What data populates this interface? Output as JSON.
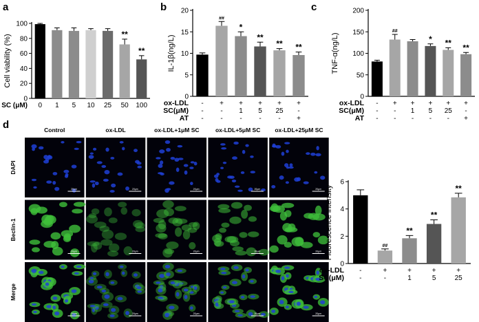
{
  "panel_labels": {
    "a": "a",
    "b": "b",
    "c": "c",
    "d": "d"
  },
  "colors": {
    "black": "#000000",
    "dark_gray": "#555555",
    "mid_gray": "#8c8c8c",
    "light_gray": "#cfcfcf",
    "gray": "#a6a6a6",
    "micro_bg": "#02020a",
    "dapi": "#1f3fd6",
    "beclin": "#3fbf3a"
  },
  "chart_data": [
    {
      "id": "a",
      "type": "bar",
      "ylabel": "Cell viability (%)",
      "xlabel_prefix": "SC (μM)",
      "categories": [
        "0",
        "1",
        "5",
        "10",
        "25",
        "50",
        "100"
      ],
      "values": [
        99,
        91,
        90,
        91,
        90,
        72,
        52
      ],
      "errors": [
        1,
        3,
        4,
        2,
        3,
        7,
        5
      ],
      "sig": [
        "",
        "",
        "",
        "",
        "",
        "**",
        "**"
      ],
      "ylim": [
        0,
        100
      ],
      "yticks": [
        "0",
        "20",
        "40",
        "60",
        "80",
        "100"
      ],
      "bar_colors": [
        "#000000",
        "#8c8c8c",
        "#8c8c8c",
        "#cfcfcf",
        "#6b6b6b",
        "#a6a6a6",
        "#555555"
      ]
    },
    {
      "id": "b",
      "type": "bar",
      "ylabel": "IL-1β(ng/L)",
      "values": [
        9.7,
        16.4,
        14.0,
        11.6,
        10.7,
        9.6
      ],
      "errors": [
        0.4,
        1.0,
        1.0,
        1.0,
        0.4,
        0.7
      ],
      "sig": [
        "",
        "##",
        "*",
        "**",
        "**",
        "**"
      ],
      "ylim": [
        0,
        20
      ],
      "yticks": [
        "0",
        "5",
        "10",
        "15",
        "20"
      ],
      "rows": [
        {
          "label": "ox-LDL",
          "marks": [
            "-",
            "+",
            "+",
            "+",
            "+",
            "+"
          ]
        },
        {
          "label": "SC(μM)",
          "marks": [
            "-",
            "-",
            "1",
            "5",
            "25",
            "-"
          ]
        },
        {
          "label": "AT",
          "marks": [
            "-",
            "-",
            "-",
            "-",
            "-",
            "+"
          ]
        }
      ],
      "bar_colors": [
        "#000000",
        "#a6a6a6",
        "#8c8c8c",
        "#555555",
        "#a6a6a6",
        "#8c8c8c"
      ]
    },
    {
      "id": "c",
      "type": "bar",
      "ylabel": "TNF-α(ng/L)",
      "values": [
        81,
        132,
        128,
        117,
        108,
        98
      ],
      "errors": [
        3,
        12,
        4,
        5,
        5,
        4
      ],
      "sig": [
        "",
        "##",
        "",
        "*",
        "**",
        "**"
      ],
      "ylim": [
        0,
        200
      ],
      "yticks": [
        "0",
        "50",
        "100",
        "150",
        "200"
      ],
      "rows": [
        {
          "label": "ox-LDL",
          "marks": [
            "-",
            "+",
            "+",
            "+",
            "+",
            "+"
          ]
        },
        {
          "label": "SC(μM)",
          "marks": [
            "-",
            "-",
            "1",
            "5",
            "25",
            "-"
          ]
        },
        {
          "label": "AT",
          "marks": [
            "-",
            "-",
            "-",
            "-",
            "-",
            "+"
          ]
        }
      ],
      "bar_colors": [
        "#000000",
        "#a6a6a6",
        "#8c8c8c",
        "#555555",
        "#a6a6a6",
        "#8c8c8c"
      ]
    },
    {
      "id": "d",
      "type": "bar",
      "ylabel": "Fluorescence intensity",
      "values": [
        5.0,
        0.95,
        1.85,
        2.9,
        4.85
      ],
      "errors": [
        0.4,
        0.12,
        0.2,
        0.3,
        0.3
      ],
      "sig": [
        "",
        "##",
        "**",
        "**",
        "**"
      ],
      "ylim": [
        0,
        6
      ],
      "yticks": [
        "0",
        "2",
        "4",
        "6"
      ],
      "rows": [
        {
          "label": "ox-LDL",
          "marks": [
            "-",
            "+",
            "+",
            "+",
            "+"
          ]
        },
        {
          "label": "SC(μM)",
          "marks": [
            "-",
            "-",
            "1",
            "5",
            "25"
          ]
        }
      ],
      "bar_colors": [
        "#000000",
        "#a6a6a6",
        "#8c8c8c",
        "#555555",
        "#a6a6a6"
      ]
    }
  ],
  "micrographs": {
    "columns": [
      "Control",
      "ox-LDL",
      "ox-LDL+1μM SC",
      "ox-LDL+5μM SC",
      "ox-LDL+25μM SC"
    ],
    "rows": [
      "DAPI",
      "Beclin-1",
      "Merge"
    ],
    "scale_label": "20μm",
    "beclin_intensity": [
      1.0,
      0.25,
      0.4,
      0.55,
      0.95
    ]
  }
}
